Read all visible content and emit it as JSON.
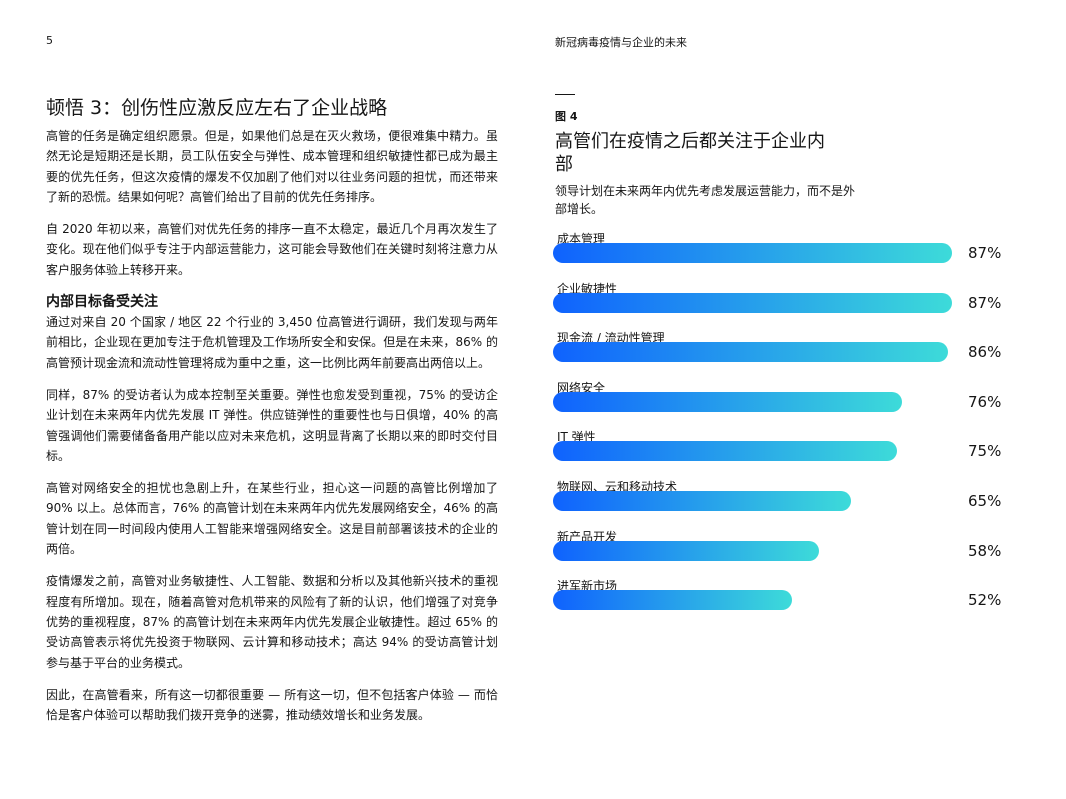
{
  "header": {
    "page_number": "5",
    "running_title": "新冠病毒疫情与企业的未来"
  },
  "article": {
    "title": "顿悟 3：创伤性应激反应左右了企业战略",
    "paragraphs_1": [
      "高管的任务是确定组织愿景。但是，如果他们总是在灭火救场，便很难集中精力。虽然无论是短期还是长期，员工队伍安全与弹性、成本管理和组织敏捷性都已成为最主要的优先任务，但这次疫情的爆发不仅加剧了他们对以往业务问题的担忧，而还带来了新的恐慌。结果如何呢？高管们给出了目前的优先任务排序。",
      "自 2020 年初以来，高管们对优先任务的排序一直不太稳定，最近几个月再次发生了变化。现在他们似乎专注于内部运营能力，这可能会导致他们在关键时刻将注意力从客户服务体验上转移开来。"
    ],
    "subheading": "内部目标备受关注",
    "paragraphs_2": [
      "通过对来自 20 个国家 / 地区 22 个行业的 3,450 位高管进行调研，我们发现与两年前相比，企业现在更加专注于危机管理及工作场所安全和安保。但是在未来，86% 的高管预计现金流和流动性管理将成为重中之重，这一比例比两年前要高出两倍以上。",
      "同样，87% 的受访者认为成本控制至关重要。弹性也愈发受到重视，75% 的受访企业计划在未来两年内优先发展 IT 弹性。供应链弹性的重要性也与日俱增，40% 的高管强调他们需要储备备用产能以应对未来危机，这明显背离了长期以来的即时交付目标。",
      "高管对网络安全的担忧也急剧上升，在某些行业，担心这一问题的高管比例增加了 90% 以上。总体而言，76% 的高管计划在未来两年内优先发展网络安全，46% 的高管计划在同一时间段内使用人工智能来增强网络安全。这是目前部署该技术的企业的两倍。",
      "疫情爆发之前，高管对业务敏捷性、人工智能、数据和分析以及其他新兴技术的重视程度有所增加。现在，随着高管对危机带来的风险有了新的认识，他们增强了对竞争优势的重视程度，87% 的高管计划在未来两年内优先发展企业敏捷性。超过 65% 的受访高管表示将优先投资于物联网、云计算和移动技术；高达 94% 的受访高管计划参与基于平台的业务模式。",
      "因此，在高管看来，所有这一切都很重要 — 所有这一切，但不包括客户体验 — 而恰恰是客户体验可以帮助我们拨开竞争的迷雾，推动绩效增长和业务发展。"
    ]
  },
  "figure": {
    "label": "图 4",
    "title": "高管们在疫情之后都关注于企业内部",
    "subtitle": "领导计划在未来两年内优先考虑发展运营能力，而不是外部增长。"
  },
  "chart_data": {
    "type": "bar",
    "orientation": "horizontal",
    "categories": [
      "成本管理",
      "企业敏捷性",
      "现金流 / 流动性管理",
      "网络安全",
      "IT 弹性",
      "物联网、云和移动技术",
      "新产品开发",
      "进军新市场"
    ],
    "values": [
      87,
      87,
      86,
      76,
      75,
      65,
      58,
      52
    ],
    "value_labels": [
      "87%",
      "87%",
      "86%",
      "76%",
      "75%",
      "65%",
      "58%",
      "52%"
    ],
    "unit": "%",
    "xlim": [
      0,
      100
    ],
    "grid": false,
    "colors": {
      "gradient_start": "#0f62fe",
      "gradient_end": "#3ddbd9"
    }
  }
}
